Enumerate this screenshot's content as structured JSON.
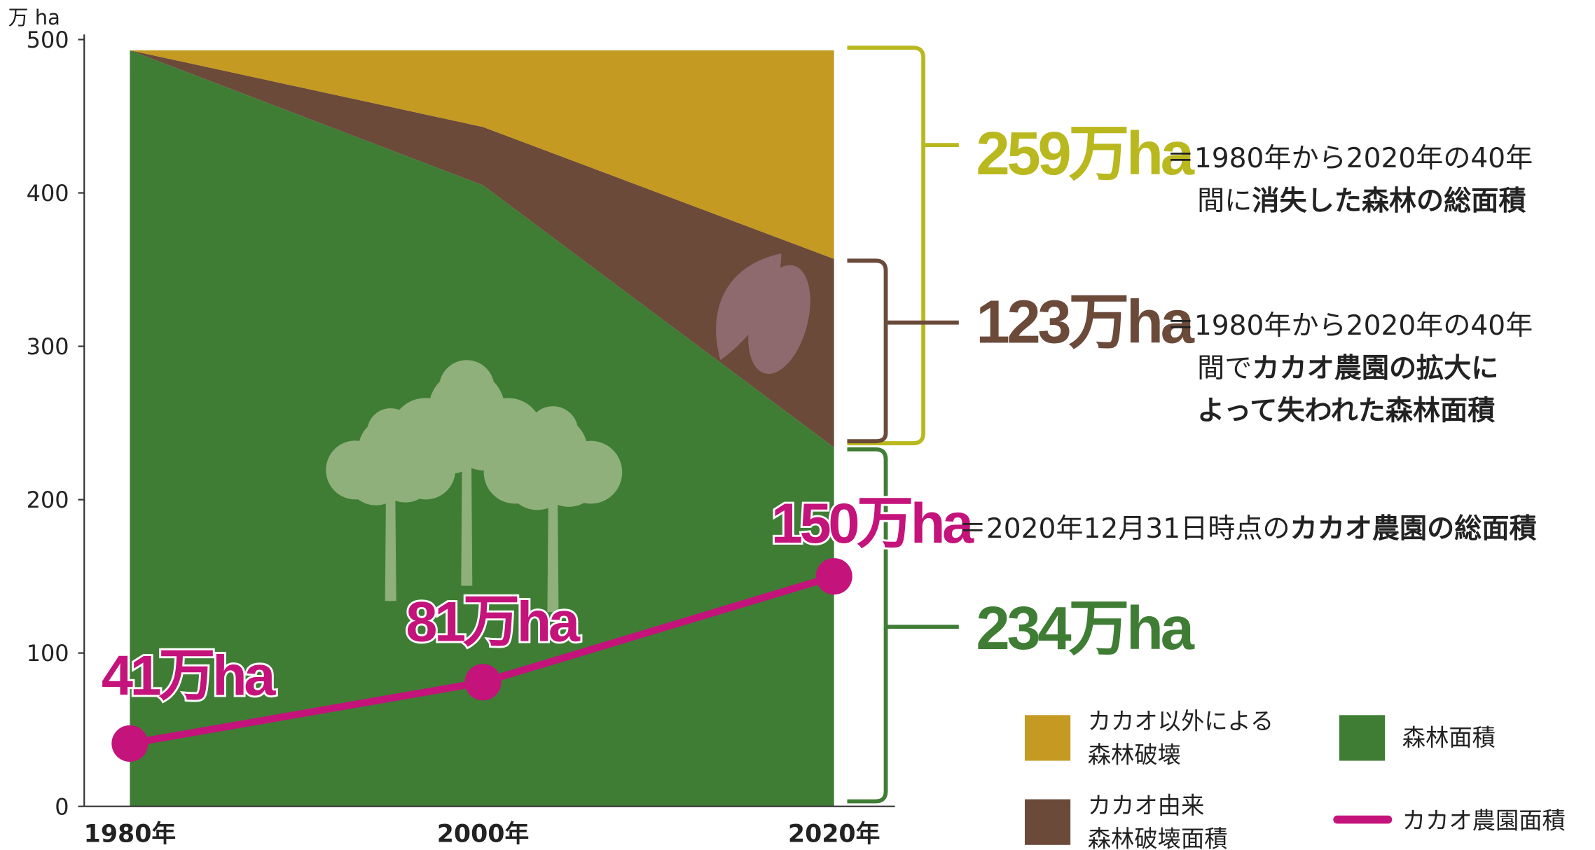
{
  "chart_data": {
    "type": "stacked-area-line",
    "y_axis_label": "万 ha",
    "categories": [
      "1980年",
      "2000年",
      "2020年"
    ],
    "ylim": [
      0,
      500
    ],
    "yticks": [
      0,
      100,
      200,
      300,
      400,
      500
    ],
    "grid": false,
    "series": [
      {
        "name": [
          "森林面積"
        ],
        "color": "#3f7d35",
        "kind": "area",
        "values": [
          493,
          405,
          234
        ]
      },
      {
        "name": [
          "カカオ由来",
          "森林破壊面積"
        ],
        "color": "#6b4a3a",
        "kind": "area",
        "values": [
          0,
          38,
          123
        ]
      },
      {
        "name": [
          "カカオ以外による",
          "森林破壊"
        ],
        "color": "#c49a22",
        "kind": "area",
        "values": [
          0,
          50,
          136
        ]
      },
      {
        "name": [
          "カカオ農園面積"
        ],
        "color": "#c4137a",
        "kind": "line",
        "values": [
          41,
          81,
          150
        ],
        "value_labels": [
          "41万ha",
          "81万ha",
          "150万ha"
        ]
      }
    ],
    "annotations": [
      {
        "label": "259万ha",
        "color": "#b9b81e",
        "lines": [
          [
            {
              "text": "＝1980年から2020年の40年",
              "bold": false
            }
          ],
          [
            {
              "text": "間に",
              "bold": false
            },
            {
              "text": "消失した森林の総面積",
              "bold": true
            }
          ]
        ]
      },
      {
        "label": "123万ha",
        "color": "#6b4a3a",
        "lines": [
          [
            {
              "text": "＝1980年から2020年の40年",
              "bold": false
            }
          ],
          [
            {
              "text": "間で",
              "bold": false
            },
            {
              "text": "カカオ農園の拡大に",
              "bold": true
            }
          ],
          [
            {
              "text": "よって失われた森林面積",
              "bold": true
            }
          ]
        ]
      },
      {
        "label": "234万ha",
        "color": "#3f7d35",
        "lines": []
      },
      {
        "label": null,
        "color": "#222",
        "lines": [
          [
            {
              "text": "＝2020年12月31日時点の",
              "bold": false
            },
            {
              "text": "カカオ農園の総面積",
              "bold": true
            }
          ]
        ]
      }
    ]
  }
}
